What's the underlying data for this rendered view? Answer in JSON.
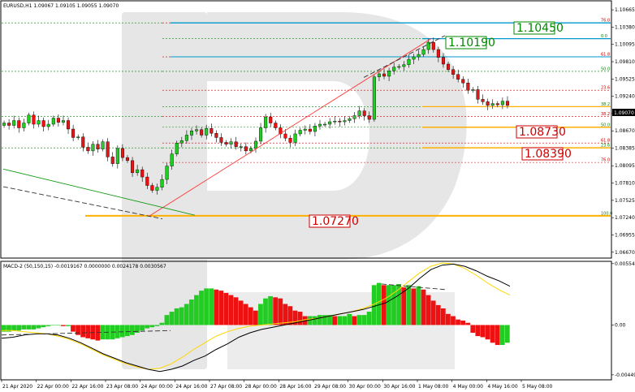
{
  "header": {
    "symbol_info": "EURUSD,H1  1.09067 1.09105 1.09055 1.09070",
    "macd_info": "MACD-2 (50,150,15) -0.0019167 0.0000000 0.0024178 0.0030567"
  },
  "colors": {
    "bull": "#22cc22",
    "bear": "#ee1111",
    "fibo_red": "#cc0000",
    "fibo_green": "#008800",
    "level_gold": "#ffb000",
    "level_cyan": "#0099cc",
    "macd_line": "#000000",
    "signal_line": "#ffd700",
    "watermark": "#dddddd"
  },
  "chart_data": [
    {
      "type": "candlestick",
      "symbol": "EURUSD",
      "timeframe": "H1",
      "ylim": [
        1.066,
        1.108
      ],
      "y_ticks": [
        "1.10665",
        "1.10380",
        "1.10095",
        "1.09810",
        "1.09525",
        "1.09240",
        "1.08955",
        "1.08670",
        "1.08385",
        "1.08095",
        "1.07810",
        "1.07525",
        "1.07240",
        "1.06955",
        "1.06670"
      ],
      "x_ticks": [
        "21 Apr 2020",
        "22 Apr 00:00",
        "22 Apr 16:00",
        "23 Apr 08:00",
        "24 Apr 00:00",
        "24 Apr 16:00",
        "27 Apr 08:00",
        "28 Apr 00:00",
        "28 Apr 16:00",
        "29 Apr 08:00",
        "30 Apr 00:00",
        "30 Apr 16:00",
        "1 May 08:00",
        "4 May 00:00",
        "4 May 16:00",
        "5 May 08:00"
      ],
      "price_series": [
        1.088,
        1.0876,
        1.0884,
        1.0872,
        1.088,
        1.0893,
        1.0878,
        1.0884,
        1.0874,
        1.0878,
        1.0888,
        1.0881,
        1.0884,
        1.087,
        1.0856,
        1.0857,
        1.084,
        1.0834,
        1.0845,
        1.0837,
        1.0849,
        1.0824,
        1.0813,
        1.0838,
        1.0823,
        1.0818,
        1.0798,
        1.0803,
        1.0791,
        1.0777,
        1.0769,
        1.0774,
        1.0787,
        1.0809,
        1.0829,
        1.0847,
        1.0851,
        1.086,
        1.0867,
        1.0869,
        1.086,
        1.0871,
        1.0863,
        1.0856,
        1.0848,
        1.0845,
        1.0849,
        1.0841,
        1.0841,
        1.0834,
        1.0838,
        1.085,
        1.0872,
        1.089,
        1.088,
        1.0872,
        1.0862,
        1.0855,
        1.0848,
        1.0862,
        1.0868,
        1.087,
        1.0866,
        1.0875,
        1.0878,
        1.0878,
        1.0882,
        1.0883,
        1.0882,
        1.0884,
        1.0887,
        1.0892,
        1.09,
        1.0892,
        1.0886,
        1.0956,
        1.0961,
        1.0957,
        1.0966,
        1.0972,
        1.0973,
        1.0976,
        1.0985,
        1.0989,
        1.0993,
        1.1001,
        1.1013,
        1.1001,
        1.0988,
        1.0977,
        1.0968,
        1.096,
        1.0952,
        1.0946,
        1.0934,
        1.0935,
        1.0919,
        1.0915,
        1.0909,
        1.0912,
        1.091,
        1.0916,
        1.0909
      ],
      "trendline_low": "1.07270",
      "trendline_high": "1.10190",
      "price_labels": {
        "current": "1.09070",
        "level_1": "1.10450",
        "level_2": "1.10190",
        "level_3": "1.08730",
        "level_4": "1.08390",
        "level_5": "1.07270"
      },
      "fibo_left": [
        {
          "label": "76.0",
          "price": 1.1045
        },
        {
          "label": "0.0",
          "price": 1.1019
        },
        {
          "label": "61.8",
          "price": 1.0989
        },
        {
          "label": "50.0",
          "price": 1.0965
        },
        {
          "label": "23.6",
          "price": 1.0934
        },
        {
          "label": "38.2",
          "price": 1.0907
        },
        {
          "label": "38.2",
          "price": 1.0891
        },
        {
          "label": "50.0",
          "price": 1.0873
        },
        {
          "label": "61.8",
          "price": 1.0847
        },
        {
          "label": "23.6",
          "price": 1.0839
        },
        {
          "label": "76.0",
          "price": 1.0815
        },
        {
          "label": "100.0",
          "price": 1.0727
        }
      ]
    },
    {
      "type": "histogram",
      "name": "MACD-2 (50,150,15)",
      "ylim": [
        -0.0048,
        0.0056
      ],
      "y_ticks": [
        "0.0055404",
        "0.00",
        "-0.004498"
      ],
      "histogram": [
        -0.0006,
        -0.0006,
        -0.0005,
        -0.0005,
        -0.0004,
        -0.0004,
        -0.0004,
        -0.0003,
        -0.0002,
        -0.0001,
        0.0,
        -0.0,
        -0.0001,
        -0.0001,
        -0.0006,
        -0.0009,
        -0.0011,
        -0.0012,
        -0.0013,
        -0.0014,
        -0.0013,
        -0.0013,
        -0.0013,
        -0.0012,
        -0.0011,
        -0.001,
        -0.0009,
        -0.0007,
        -0.0005,
        -0.0003,
        -0.0002,
        -0.0001,
        0.0002,
        0.0009,
        0.0012,
        0.0015,
        0.0016,
        0.0019,
        0.0023,
        0.0027,
        0.0031,
        0.0033,
        0.0033,
        0.0032,
        0.0031,
        0.0029,
        0.0027,
        0.0025,
        0.0022,
        0.0019,
        0.0016,
        0.0013,
        0.0019,
        0.0024,
        0.0026,
        0.0025,
        0.0024,
        0.0019,
        0.0017,
        0.0013,
        0.0012,
        0.0008,
        0.0008,
        0.0008,
        0.0009,
        0.0009,
        0.0009,
        0.0008,
        0.0008,
        0.0008,
        0.001,
        0.0008,
        0.0009,
        0.0009,
        0.0012,
        0.0036,
        0.0038,
        0.0036,
        0.0036,
        0.0036,
        0.0037,
        0.0034,
        0.0036,
        0.0033,
        0.0035,
        0.0032,
        0.0027,
        0.0022,
        0.0018,
        0.0015,
        0.001,
        0.0008,
        0.0005,
        0.0004,
        0.0002,
        -0.0007,
        -0.001,
        -0.0011,
        -0.0013,
        -0.0016,
        -0.0018,
        -0.0018,
        -0.0016
      ],
      "macd_line": [
        -0.0012,
        -0.0011,
        -0.0009,
        -0.0008,
        -0.0008,
        -0.0009,
        -0.0012,
        -0.0016,
        -0.0021,
        -0.0026,
        -0.003,
        -0.0034,
        -0.0037,
        -0.004,
        -0.0042,
        -0.004,
        -0.0037,
        -0.0032,
        -0.0028,
        -0.0022,
        -0.0017,
        -0.0011,
        -0.0007,
        -0.0004,
        -0.0002,
        0.0,
        0.0002,
        0.0004,
        0.0006,
        0.0008,
        0.001,
        0.0012,
        0.0014,
        0.0017,
        0.002,
        0.0026,
        0.0033,
        0.0042,
        0.005,
        0.0054,
        0.0055,
        0.0053,
        0.0049,
        0.0044,
        0.004,
        0.0035
      ],
      "signal_line": [
        -0.0005,
        -0.0005,
        -0.0006,
        -0.0007,
        -0.0008,
        -0.001,
        -0.0013,
        -0.0017,
        -0.0022,
        -0.0027,
        -0.0031,
        -0.0035,
        -0.0038,
        -0.004,
        -0.0039,
        -0.0035,
        -0.0029,
        -0.0022,
        -0.0016,
        -0.001,
        -0.0006,
        -0.0003,
        -0.0001,
        0.0,
        0.0001,
        0.0002,
        0.0003,
        0.0005,
        0.0006,
        0.0008,
        0.001,
        0.0012,
        0.0015,
        0.0019,
        0.0024,
        0.0031,
        0.0039,
        0.0047,
        0.0053,
        0.0056,
        0.0055,
        0.0051,
        0.0045,
        0.0038,
        0.0032,
        0.0027
      ]
    }
  ]
}
